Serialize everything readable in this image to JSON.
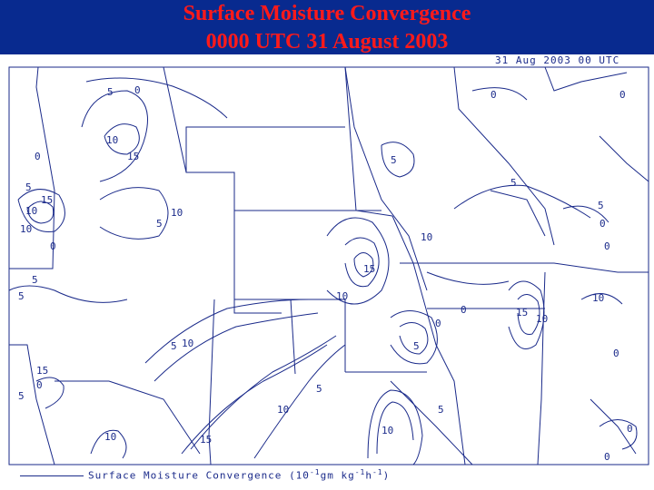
{
  "header": {
    "title_line1": "Surface Moisture Convergence",
    "title_line2": "0000 UTC 31 August 2003",
    "title_color": "#ff1a1a",
    "background_color": "#082a8f"
  },
  "map": {
    "timestamp": "31 Aug 2003 00 UTC",
    "line_color": "#1a2a8a",
    "contour_labels": [
      "5",
      "0",
      "10",
      "15",
      "5",
      "0",
      "10",
      "15",
      "5",
      "10",
      "10",
      "5",
      "0",
      "5",
      "10",
      "15",
      "0",
      "5",
      "10",
      "15",
      "0",
      "0",
      "5",
      "10",
      "0",
      "5",
      "10",
      "0",
      "5",
      "10",
      "15",
      "5",
      "0",
      "10",
      "15",
      "10",
      "0",
      "0",
      "5",
      "10",
      "5",
      "0",
      "0",
      "5"
    ]
  },
  "legend": {
    "label": "Surface Moisture Convergence",
    "units_prefix": "(10",
    "units_exp1": "-1",
    "units_mid": "gm kg",
    "units_exp2": "-1",
    "units_h": "h",
    "units_exp3": "-1",
    "units_suffix": ")"
  }
}
